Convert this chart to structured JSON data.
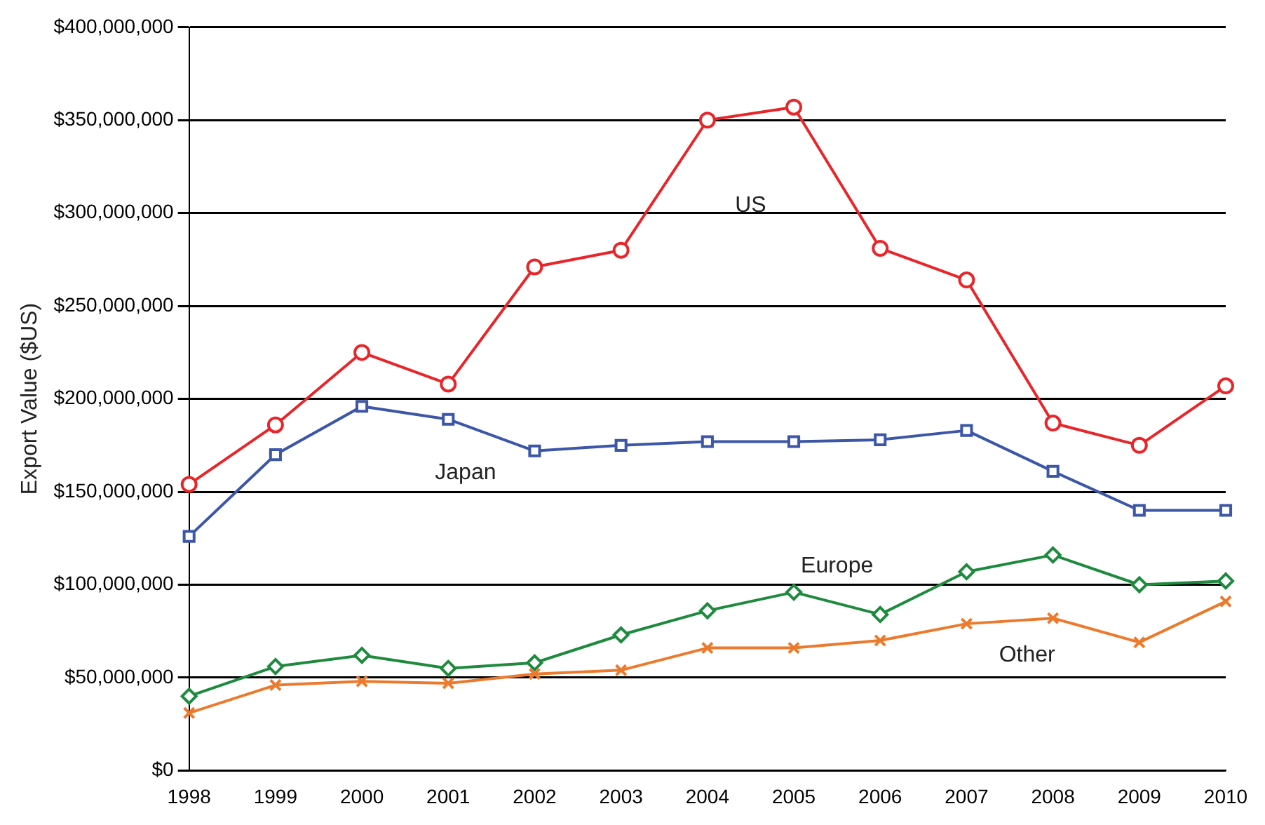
{
  "chart_data": {
    "type": "line",
    "ylabel": "Export Value ($US)",
    "categories": [
      "1998",
      "1999",
      "2000",
      "2001",
      "2002",
      "2003",
      "2004",
      "2005",
      "2006",
      "2007",
      "2008",
      "2009",
      "2010"
    ],
    "series": [
      {
        "name": "US",
        "color": "#e8262a",
        "marker": "circle",
        "values": [
          154000000,
          186000000,
          225000000,
          208000000,
          271000000,
          280000000,
          350000000,
          357000000,
          281000000,
          264000000,
          187000000,
          175000000,
          207000000
        ]
      },
      {
        "name": "Japan",
        "color": "#3c56a8",
        "marker": "square",
        "values": [
          126000000,
          170000000,
          196000000,
          189000000,
          172000000,
          175000000,
          177000000,
          177000000,
          178000000,
          183000000,
          161000000,
          140000000,
          140000000
        ]
      },
      {
        "name": "Europe",
        "color": "#1e8a3e",
        "marker": "diamond",
        "values": [
          40000000,
          56000000,
          62000000,
          55000000,
          58000000,
          73000000,
          86000000,
          96000000,
          84000000,
          107000000,
          116000000,
          100000000,
          102000000
        ]
      },
      {
        "name": "Other",
        "color": "#ec7a2c",
        "marker": "cross",
        "values": [
          31000000,
          46000000,
          48000000,
          47000000,
          52000000,
          54000000,
          66000000,
          66000000,
          70000000,
          79000000,
          82000000,
          69000000,
          91000000
        ]
      }
    ],
    "ylim": [
      0,
      400000000
    ],
    "yticks": [
      {
        "value": 0,
        "label": "$0"
      },
      {
        "value": 50000000,
        "label": "$50,000,000"
      },
      {
        "value": 100000000,
        "label": "$100,000,000"
      },
      {
        "value": 150000000,
        "label": "$150,000,000"
      },
      {
        "value": 200000000,
        "label": "$200,000,000"
      },
      {
        "value": 250000000,
        "label": "$250,000,000"
      },
      {
        "value": 300000000,
        "label": "$300,000,000"
      },
      {
        "value": 350000000,
        "label": "$350,000,000"
      },
      {
        "value": 400000000,
        "label": "$400,000,000"
      }
    ],
    "grid": "y",
    "legend": false,
    "line_style": "solid"
  }
}
